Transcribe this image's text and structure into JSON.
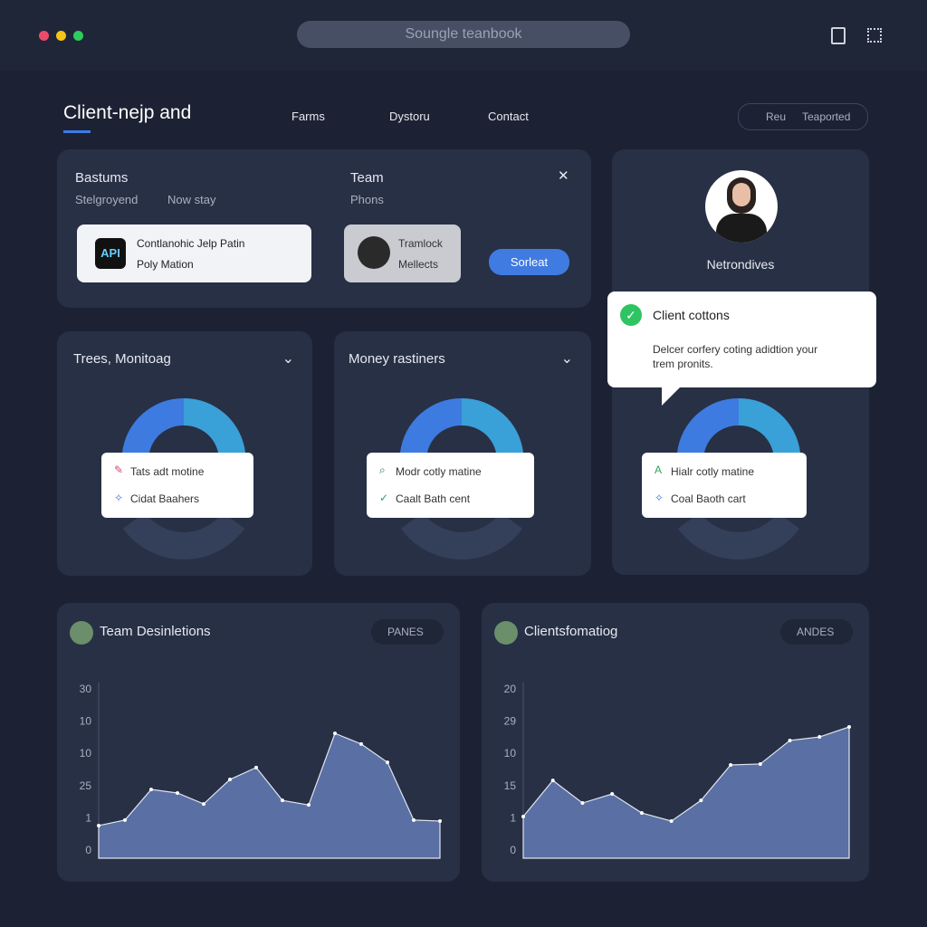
{
  "topbar": {
    "search": "Soungle teanbook"
  },
  "header": {
    "title": "Client-nejp and",
    "nav": [
      "Farms",
      "Dystoru",
      "Contact"
    ],
    "search_pill": [
      "Reu",
      "Teaported"
    ]
  },
  "overview": {
    "col1": {
      "title": "Bastums",
      "subs": [
        "Stelgroyend",
        "Now stay"
      ],
      "item": {
        "icon": "API",
        "lines": [
          "Contlanohic Jelp Patin",
          "Poly Mation"
        ]
      }
    },
    "col2": {
      "title": "Team",
      "sub": "Phons",
      "item": {
        "lines": [
          "Tramlock",
          "Mellects"
        ]
      }
    },
    "button": "Sorleat"
  },
  "profile": {
    "name": "Netrondives"
  },
  "popup": {
    "title": "Client cottons",
    "text": "Delcer corfery coting adidtion your trem pronits."
  },
  "donuts": [
    {
      "title": "Trees, Monitoag",
      "legend": [
        "Tats adt motine",
        "Cidat Baahers"
      ]
    },
    {
      "title": "Money rastiners",
      "legend": [
        "Modr cotly matine",
        "Caalt Bath cent"
      ]
    },
    {
      "legend": [
        "Hialr cotly matine",
        "Coal Baoth cart"
      ]
    }
  ],
  "charts": [
    {
      "type": "area",
      "title": "Team Desinletions",
      "dropdown": "PANES",
      "color": "#5a6fa3",
      "y_labels": [
        "30",
        "10",
        "10",
        "25",
        "1",
        "0"
      ],
      "ylim": [
        0,
        5
      ],
      "values": [
        0.76,
        0.93,
        1.88,
        1.77,
        1.43,
        2.19,
        2.56,
        1.54,
        1.4,
        3.62,
        3.29,
        2.72,
        0.93,
        0.9
      ]
    },
    {
      "type": "area",
      "title": "Clientsfomatiog",
      "dropdown": "ANDES",
      "color": "#5a6fa3",
      "y_labels": [
        "20",
        "29",
        "10",
        "15",
        "1",
        "0"
      ],
      "ylim": [
        0,
        5
      ],
      "values": [
        1.04,
        2.16,
        1.46,
        1.74,
        1.15,
        0.9,
        1.54,
        2.64,
        2.67,
        3.4,
        3.51,
        3.82
      ]
    }
  ]
}
